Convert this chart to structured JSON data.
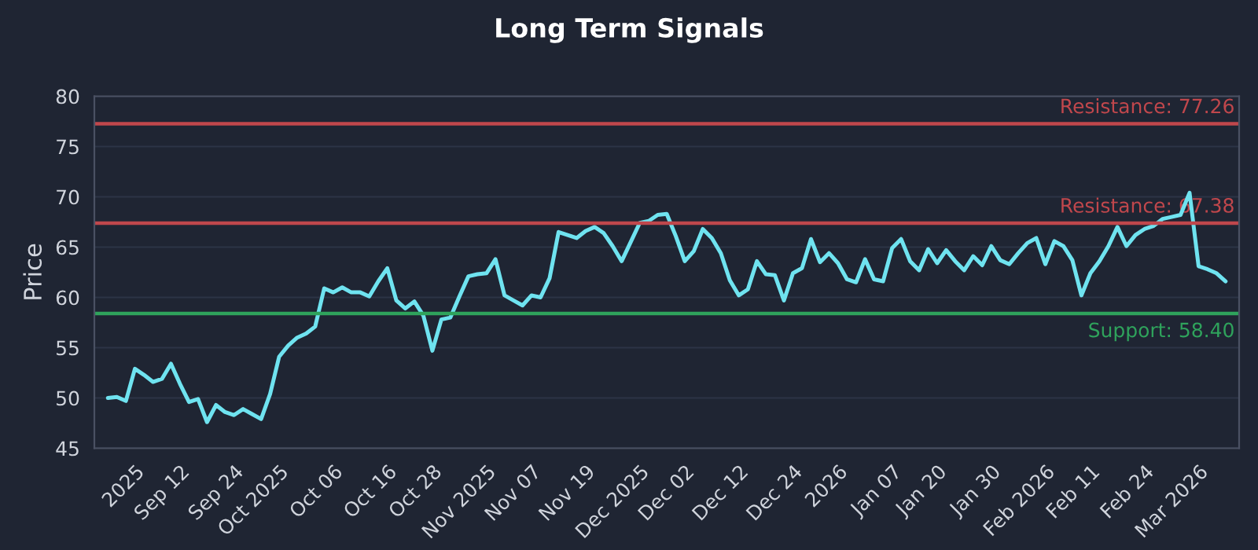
{
  "chart_data": {
    "type": "line",
    "title": "Long Term Signals",
    "ylabel": "Price",
    "categories": [
      null,
      null,
      null,
      "2025",
      null,
      null,
      null,
      null,
      "Sep 12",
      null,
      null,
      null,
      null,
      null,
      "Sep 24",
      null,
      null,
      null,
      null,
      "Oct 2025",
      null,
      null,
      null,
      null,
      null,
      "Oct 06",
      null,
      null,
      null,
      null,
      null,
      "Oct 16",
      null,
      null,
      null,
      null,
      "Oct 28",
      null,
      null,
      null,
      null,
      null,
      "Nov 2025",
      null,
      null,
      null,
      null,
      "Nov 07",
      null,
      null,
      null,
      null,
      null,
      "Nov 19",
      null,
      null,
      null,
      null,
      null,
      "Dec 2025",
      null,
      null,
      null,
      null,
      "Dec 02",
      null,
      null,
      null,
      null,
      null,
      "Dec 12",
      null,
      null,
      null,
      null,
      null,
      "Dec 24",
      null,
      null,
      null,
      null,
      "2026",
      null,
      null,
      null,
      null,
      null,
      "Jan 07",
      null,
      null,
      null,
      null,
      "Jan 20",
      null,
      null,
      null,
      null,
      null,
      "Jan 30",
      null,
      null,
      null,
      null,
      null,
      "Feb 2026",
      null,
      null,
      null,
      null,
      "Feb 11",
      null,
      null,
      null,
      null,
      null,
      "Feb 24",
      null,
      null,
      null,
      null,
      null,
      "Mar 2026",
      null,
      null,
      null
    ],
    "series": [
      {
        "color": "#6fe3f0",
        "values": [
          50.0,
          50.1,
          49.7,
          52.9,
          52.3,
          51.6,
          51.9,
          53.4,
          51.4,
          49.6,
          49.9,
          47.6,
          49.3,
          48.6,
          48.3,
          48.9,
          48.4,
          47.9,
          50.4,
          54.1,
          55.2,
          56.0,
          56.4,
          57.1,
          60.9,
          60.5,
          61.0,
          60.5,
          60.5,
          60.1,
          61.6,
          62.9,
          59.7,
          58.9,
          59.6,
          58.2,
          54.7,
          57.8,
          58.0,
          60.1,
          62.1,
          62.3,
          62.4,
          63.8,
          60.2,
          59.7,
          59.2,
          60.2,
          60.0,
          61.9,
          66.5,
          66.2,
          65.9,
          66.6,
          67.0,
          66.4,
          65.1,
          63.6,
          65.5,
          67.4,
          67.6,
          68.2,
          68.3,
          66.1,
          63.6,
          64.6,
          66.8,
          65.9,
          64.4,
          61.7,
          60.2,
          60.8,
          63.6,
          62.3,
          62.2,
          59.7,
          62.4,
          62.9,
          65.8,
          63.5,
          64.4,
          63.4,
          61.8,
          61.5,
          63.8,
          61.8,
          61.6,
          64.9,
          65.8,
          63.6,
          62.7,
          64.8,
          63.4,
          64.7,
          63.6,
          62.7,
          64.1,
          63.2,
          65.1,
          63.7,
          63.3,
          64.4,
          65.4,
          65.9,
          63.3,
          65.6,
          65.1,
          63.7,
          60.2,
          62.4,
          63.6,
          65.1,
          67.0,
          65.1,
          66.2,
          66.8,
          67.1,
          67.8,
          68.0,
          68.2,
          70.4,
          63.1,
          62.8,
          62.4,
          61.6
        ]
      }
    ],
    "ylim": [
      45,
      80
    ],
    "yticks": [
      45,
      50,
      55,
      60,
      65,
      70,
      75,
      80
    ],
    "grid": "y",
    "marker": "none",
    "line_style": "solid",
    "ref_lines": [
      {
        "axis": "y",
        "value": 77.26,
        "label": "Resistance: 77.26",
        "color": "#c0474c"
      },
      {
        "axis": "y",
        "value": 67.38,
        "label": "Resistance: 67.38",
        "color": "#c0474c"
      },
      {
        "axis": "y",
        "value": 58.4,
        "label": "Support: 58.40",
        "color": "#2fa35c"
      }
    ]
  }
}
